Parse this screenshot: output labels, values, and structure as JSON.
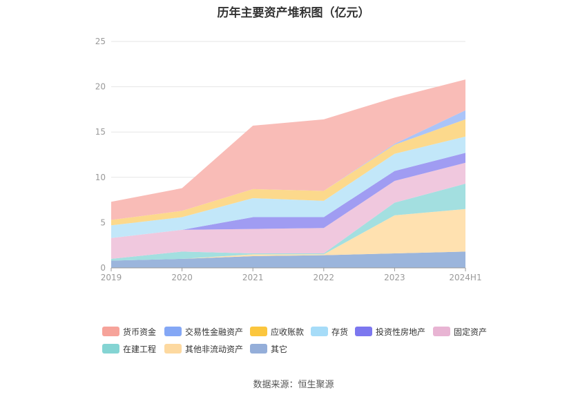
{
  "title": "历年主要资产堆积图（亿元）",
  "source": "数据来源：恒生聚源",
  "chart_data": {
    "type": "area",
    "stacked": true,
    "x": [
      "2019",
      "2020",
      "2021",
      "2022",
      "2023",
      "2024H1"
    ],
    "ylim": [
      0,
      25
    ],
    "yticks": [
      0,
      5,
      10,
      15,
      20,
      25
    ],
    "grid": true,
    "legend_position": "bottom",
    "series": [
      {
        "name": "其它",
        "color": "#9bb5dc",
        "values": [
          0.8,
          1.0,
          1.3,
          1.4,
          1.6,
          1.8
        ]
      },
      {
        "name": "其他非流动资产",
        "color": "#ffe1b0",
        "values": [
          0.0,
          0.0,
          0.2,
          0.1,
          4.2,
          4.7
        ]
      },
      {
        "name": "在建工程",
        "color": "#a3dfe0",
        "values": [
          0.2,
          0.8,
          0.1,
          0.1,
          1.4,
          2.8
        ]
      },
      {
        "name": "固定资产",
        "color": "#f0c8de",
        "values": [
          2.3,
          2.4,
          2.7,
          2.8,
          2.4,
          2.3
        ]
      },
      {
        "name": "投资性房地产",
        "color": "#a09cf2",
        "values": [
          0.0,
          0.0,
          1.3,
          1.2,
          1.1,
          1.1
        ]
      },
      {
        "name": "存货",
        "color": "#c2e7f9",
        "values": [
          1.4,
          1.4,
          2.1,
          1.8,
          1.9,
          1.8
        ]
      },
      {
        "name": "应收账款",
        "color": "#fcd98c",
        "values": [
          0.6,
          0.7,
          1.0,
          1.1,
          1.0,
          1.9
        ]
      },
      {
        "name": "交易性金融资产",
        "color": "#aac4f8",
        "values": [
          0.0,
          0.0,
          0.0,
          0.0,
          0.1,
          1.0
        ]
      },
      {
        "name": "货币资金",
        "color": "#f9bcb7",
        "values": [
          2.0,
          2.5,
          7.0,
          7.9,
          5.1,
          3.4
        ]
      }
    ]
  },
  "legend": [
    {
      "label": "货币资金",
      "color": "#f6a39a"
    },
    {
      "label": "交易性金融资产",
      "color": "#84a7f5"
    },
    {
      "label": "应收账款",
      "color": "#fbc63e"
    },
    {
      "label": "存货",
      "color": "#a6dcf8"
    },
    {
      "label": "投资性房地产",
      "color": "#7c77ef"
    },
    {
      "label": "固定资产",
      "color": "#e8b4d3"
    },
    {
      "label": "在建工程",
      "color": "#84d4d3"
    },
    {
      "label": "其他非流动资产",
      "color": "#fdd9a0"
    },
    {
      "label": "其它",
      "color": "#94aed9"
    }
  ]
}
